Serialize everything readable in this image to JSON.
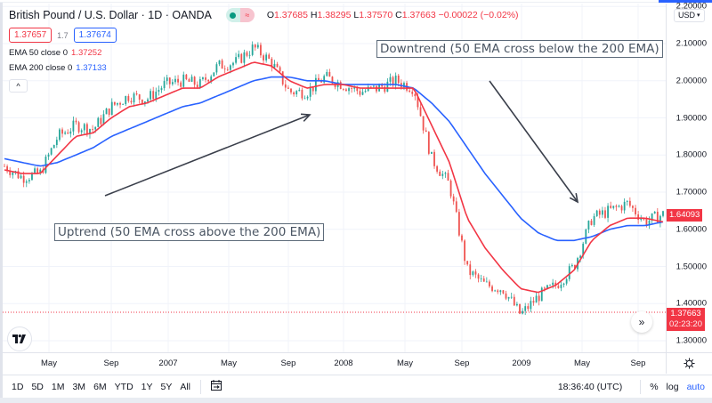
{
  "header": {
    "symbol_title": "British Pound / U.S. Dollar · 1D · OANDA",
    "market_status_icon": "market-open-dot",
    "delay_icon": "approx-icon",
    "ohlc": {
      "open_label": "O",
      "open": "1.37685",
      "high_label": "H",
      "high": "1.38295",
      "low_label": "L",
      "low": "1.37570",
      "close_label": "C",
      "close": "1.37663",
      "change": "−0.00022 (−0.02%)"
    },
    "bid": "1.37657",
    "spread": "1.7",
    "ask": "1.37674"
  },
  "indicators": [
    {
      "label": "EMA 50 close 0",
      "value": "1.37252",
      "color": "#f23645"
    },
    {
      "label": "EMA 200 close 0",
      "value": "1.37133",
      "color": "#2962ff"
    }
  ],
  "collapse_icon": "^",
  "annotations": {
    "downtrend": "Downtrend (50 EMA cross below the 200 EMA)",
    "uptrend": "Uptrend (50 EMA cross above the 200 EMA)"
  },
  "price_axis": {
    "currency": "USD",
    "ticks": [
      "2.20000",
      "2.10000",
      "2.00000",
      "1.90000",
      "1.80000",
      "1.70000",
      "1.60000",
      "1.50000",
      "1.40000",
      "1.30000"
    ],
    "last_price_label": "1.64093",
    "current_price_label": "1.37663",
    "countdown": "02:23:20"
  },
  "time_axis": {
    "ticks": [
      "May",
      "Sep",
      "2007",
      "May",
      "Sep",
      "2008",
      "May",
      "Sep",
      "2009",
      "May",
      "Sep"
    ]
  },
  "bottom_bar": {
    "ranges": [
      "1D",
      "5D",
      "1M",
      "3M",
      "6M",
      "YTD",
      "1Y",
      "5Y",
      "All"
    ],
    "clock": "18:36:40 (UTC)",
    "percent": "%",
    "log": "log",
    "auto": "auto"
  },
  "colors": {
    "up": "#26a69a",
    "down": "#ef5350",
    "ema50": "#f23645",
    "ema200": "#2962ff",
    "accent": "#2962ff"
  },
  "chart_data": {
    "type": "line",
    "title": "British Pound / U.S. Dollar · 1D · OANDA",
    "xlabel": "",
    "ylabel": "USD",
    "ylim": [
      1.27,
      2.23
    ],
    "x_ticks": [
      "May",
      "Sep",
      "2007",
      "May",
      "Sep",
      "2008",
      "May",
      "Sep",
      "2009",
      "May",
      "Sep"
    ],
    "series": [
      {
        "name": "Price (approx closes)",
        "values": [
          1.77,
          1.74,
          1.75,
          1.85,
          1.88,
          1.87,
          1.93,
          1.96,
          1.95,
          1.99,
          2.0,
          1.99,
          2.04,
          2.05,
          2.09,
          2.05,
          1.97,
          1.97,
          2.01,
          1.99,
          1.97,
          1.98,
          2.0,
          1.98,
          1.79,
          1.72,
          1.49,
          1.45,
          1.44,
          1.37,
          1.42,
          1.45,
          1.5,
          1.63,
          1.65,
          1.67,
          1.62,
          1.64
        ]
      },
      {
        "name": "EMA 50",
        "values": [
          1.76,
          1.75,
          1.75,
          1.8,
          1.85,
          1.86,
          1.9,
          1.93,
          1.94,
          1.96,
          1.98,
          1.98,
          2.01,
          2.03,
          2.05,
          2.04,
          2.0,
          1.98,
          1.99,
          1.99,
          1.98,
          1.98,
          1.98,
          1.98,
          1.88,
          1.78,
          1.63,
          1.55,
          1.49,
          1.44,
          1.43,
          1.45,
          1.49,
          1.57,
          1.61,
          1.63,
          1.63,
          1.62
        ]
      },
      {
        "name": "EMA 200",
        "values": [
          1.79,
          1.78,
          1.77,
          1.78,
          1.8,
          1.82,
          1.85,
          1.87,
          1.89,
          1.91,
          1.93,
          1.94,
          1.96,
          1.98,
          2.0,
          2.01,
          2.01,
          2.0,
          2.0,
          1.99,
          1.99,
          1.99,
          1.99,
          1.98,
          1.94,
          1.89,
          1.82,
          1.75,
          1.69,
          1.63,
          1.59,
          1.57,
          1.57,
          1.58,
          1.6,
          1.61,
          1.61,
          1.62
        ]
      }
    ]
  }
}
